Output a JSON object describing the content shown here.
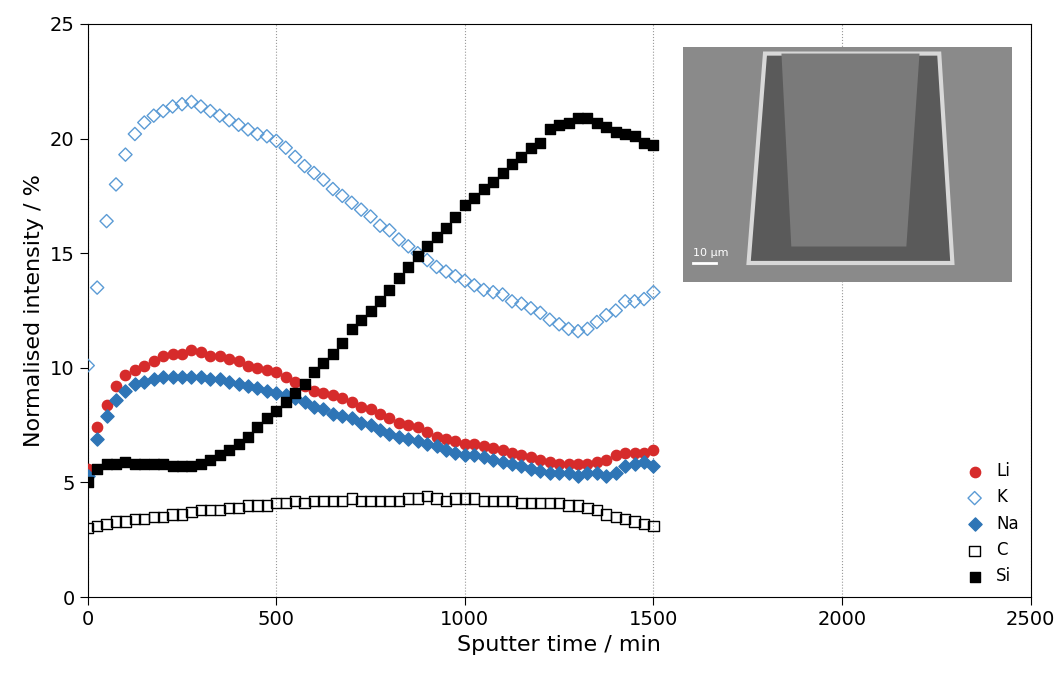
{
  "chart_data": {
    "type": "scatter",
    "x_label": "Sputter time / min",
    "y_label": "Normalised intensity / %",
    "xlim": [
      0,
      2500
    ],
    "xticks": [
      0,
      500,
      1000,
      1500,
      2000,
      2500
    ],
    "ylim": [
      0,
      25
    ],
    "yticks": [
      0,
      5,
      10,
      15,
      20,
      25
    ],
    "grid": true,
    "legend": "lower right",
    "annotations": [
      "10 μm"
    ],
    "x": [
      0,
      25,
      50,
      75,
      100,
      125,
      150,
      175,
      200,
      225,
      250,
      275,
      300,
      325,
      350,
      375,
      400,
      425,
      450,
      475,
      500,
      525,
      550,
      575,
      600,
      625,
      650,
      675,
      700,
      725,
      750,
      775,
      800,
      825,
      850,
      875,
      900,
      925,
      950,
      975,
      1000,
      1025,
      1050,
      1075,
      1100,
      1125,
      1150,
      1175,
      1200,
      1225,
      1250,
      1275,
      1300,
      1325,
      1350,
      1375,
      1400,
      1425,
      1450,
      1475,
      1500
    ],
    "series": [
      {
        "name": "Li",
        "color": "#d62b2b",
        "marker": "circle",
        "values": [
          5.6,
          7.4,
          8.4,
          9.2,
          9.7,
          9.9,
          10.1,
          10.3,
          10.5,
          10.6,
          10.6,
          10.8,
          10.7,
          10.5,
          10.5,
          10.4,
          10.3,
          10.1,
          10.0,
          9.9,
          9.8,
          9.6,
          9.4,
          9.2,
          9.0,
          8.9,
          8.8,
          8.7,
          8.5,
          8.3,
          8.2,
          8.0,
          7.8,
          7.6,
          7.5,
          7.4,
          7.2,
          7.0,
          6.9,
          6.8,
          6.7,
          6.7,
          6.6,
          6.5,
          6.4,
          6.3,
          6.2,
          6.1,
          6.0,
          5.9,
          5.8,
          5.8,
          5.8,
          5.8,
          5.9,
          6.0,
          6.2,
          6.3,
          6.3,
          6.3,
          6.4
        ]
      },
      {
        "name": "K",
        "color": "#5b9bd5",
        "marker": "open_diamond",
        "values": [
          10.1,
          13.5,
          16.4,
          18.0,
          19.3,
          20.2,
          20.7,
          21.0,
          21.2,
          21.4,
          21.5,
          21.6,
          21.4,
          21.2,
          21.0,
          20.8,
          20.6,
          20.4,
          20.2,
          20.1,
          19.9,
          19.6,
          19.2,
          18.8,
          18.5,
          18.2,
          17.8,
          17.5,
          17.2,
          16.9,
          16.6,
          16.2,
          16.0,
          15.6,
          15.3,
          15.0,
          14.7,
          14.4,
          14.2,
          14.0,
          13.8,
          13.6,
          13.4,
          13.3,
          13.2,
          12.9,
          12.8,
          12.6,
          12.4,
          12.1,
          11.9,
          11.7,
          11.6,
          11.7,
          12.0,
          12.3,
          12.5,
          12.9,
          12.9,
          13.0,
          13.3
        ]
      },
      {
        "name": "Na",
        "color": "#2e75b6",
        "marker": "diamond",
        "values": [
          5.3,
          6.9,
          7.9,
          8.6,
          9.0,
          9.3,
          9.4,
          9.5,
          9.6,
          9.6,
          9.6,
          9.6,
          9.6,
          9.5,
          9.5,
          9.4,
          9.3,
          9.2,
          9.1,
          9.0,
          8.9,
          8.8,
          8.7,
          8.5,
          8.3,
          8.2,
          8.0,
          7.9,
          7.8,
          7.6,
          7.5,
          7.3,
          7.1,
          7.0,
          6.9,
          6.8,
          6.7,
          6.6,
          6.4,
          6.3,
          6.2,
          6.2,
          6.1,
          6.0,
          5.9,
          5.8,
          5.7,
          5.6,
          5.5,
          5.4,
          5.4,
          5.4,
          5.3,
          5.4,
          5.4,
          5.3,
          5.4,
          5.7,
          5.8,
          5.9,
          5.7
        ]
      },
      {
        "name": "C",
        "color": "#000000",
        "marker": "open_square",
        "values": [
          3.0,
          3.1,
          3.2,
          3.3,
          3.3,
          3.4,
          3.4,
          3.5,
          3.5,
          3.6,
          3.6,
          3.7,
          3.8,
          3.8,
          3.8,
          3.9,
          3.9,
          4.0,
          4.0,
          4.0,
          4.1,
          4.1,
          4.2,
          4.1,
          4.2,
          4.2,
          4.2,
          4.2,
          4.3,
          4.2,
          4.2,
          4.2,
          4.2,
          4.2,
          4.3,
          4.3,
          4.4,
          4.3,
          4.2,
          4.3,
          4.3,
          4.3,
          4.2,
          4.2,
          4.2,
          4.2,
          4.1,
          4.1,
          4.1,
          4.1,
          4.1,
          4.0,
          4.0,
          3.9,
          3.8,
          3.6,
          3.5,
          3.4,
          3.3,
          3.2,
          3.1
        ]
      },
      {
        "name": "Si",
        "color": "#000000",
        "marker": "square",
        "values": [
          5.0,
          5.6,
          5.8,
          5.8,
          5.9,
          5.8,
          5.8,
          5.8,
          5.8,
          5.7,
          5.7,
          5.7,
          5.8,
          6.0,
          6.2,
          6.4,
          6.7,
          7.0,
          7.4,
          7.8,
          8.1,
          8.5,
          8.9,
          9.3,
          9.8,
          10.2,
          10.6,
          11.1,
          11.7,
          12.1,
          12.5,
          12.9,
          13.4,
          13.9,
          14.4,
          14.9,
          15.3,
          15.7,
          16.1,
          16.6,
          17.1,
          17.4,
          17.8,
          18.1,
          18.5,
          18.9,
          19.2,
          19.6,
          19.8,
          20.4,
          20.6,
          20.7,
          20.9,
          20.9,
          20.7,
          20.5,
          20.3,
          20.2,
          20.1,
          19.8,
          19.7
        ]
      }
    ]
  }
}
